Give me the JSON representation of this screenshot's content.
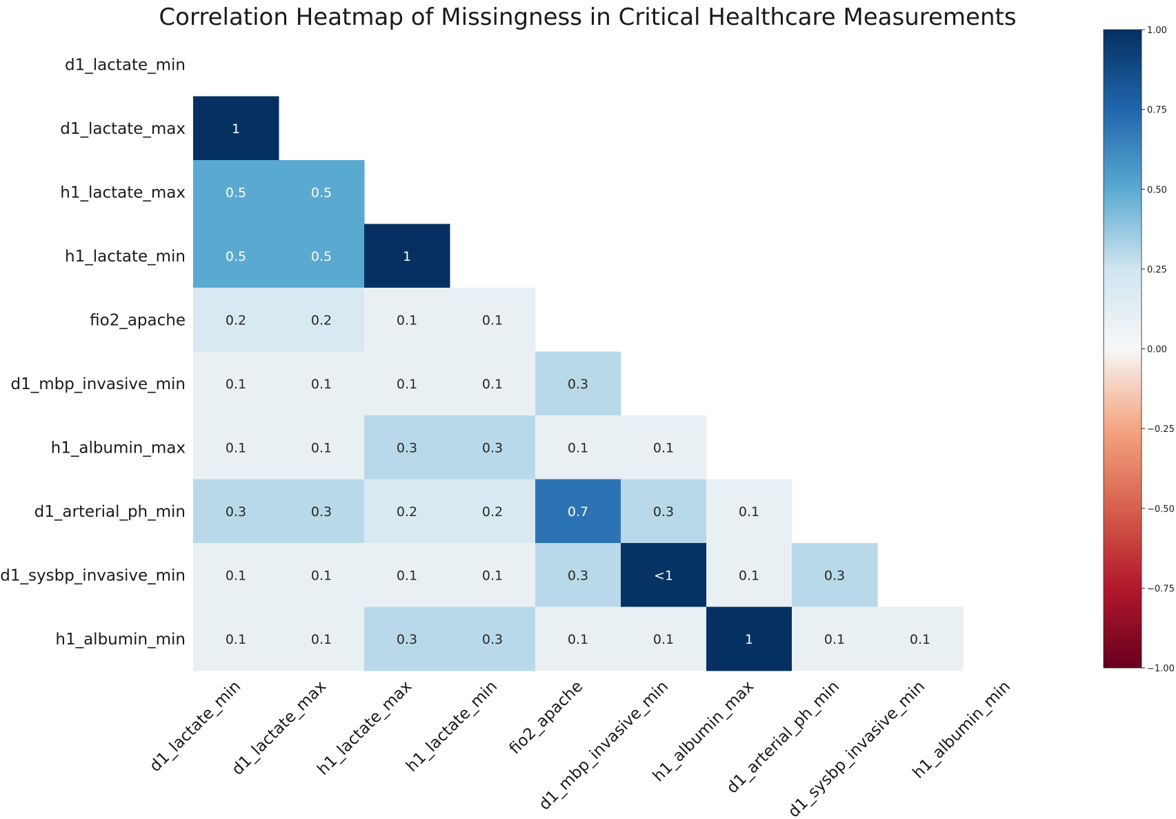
{
  "chart_data": {
    "type": "heatmap",
    "title": "Correlation Heatmap of Missingness in Critical Healthcare Measurements",
    "row_labels": [
      "d1_lactate_min",
      "d1_lactate_max",
      "h1_lactate_max",
      "h1_lactate_min",
      "fio2_apache",
      "d1_mbp_invasive_min",
      "h1_albumin_max",
      "d1_arterial_ph_min",
      "d1_sysbp_invasive_min",
      "h1_albumin_min"
    ],
    "col_labels": [
      "d1_lactate_min",
      "d1_lactate_max",
      "h1_lactate_max",
      "h1_lactate_min",
      "fio2_apache",
      "d1_mbp_invasive_min",
      "h1_albumin_max",
      "d1_arterial_ph_min",
      "d1_sysbp_invasive_min",
      "h1_albumin_min"
    ],
    "mask": "upper-triangle-including-diagonal",
    "cells": [
      {
        "row": 1,
        "col": 0,
        "value": 1.0,
        "label": "1"
      },
      {
        "row": 2,
        "col": 0,
        "value": 0.5,
        "label": "0.5"
      },
      {
        "row": 2,
        "col": 1,
        "value": 0.5,
        "label": "0.5"
      },
      {
        "row": 3,
        "col": 0,
        "value": 0.5,
        "label": "0.5"
      },
      {
        "row": 3,
        "col": 1,
        "value": 0.5,
        "label": "0.5"
      },
      {
        "row": 3,
        "col": 2,
        "value": 1.0,
        "label": "1"
      },
      {
        "row": 4,
        "col": 0,
        "value": 0.2,
        "label": "0.2"
      },
      {
        "row": 4,
        "col": 1,
        "value": 0.2,
        "label": "0.2"
      },
      {
        "row": 4,
        "col": 2,
        "value": 0.1,
        "label": "0.1"
      },
      {
        "row": 4,
        "col": 3,
        "value": 0.1,
        "label": "0.1"
      },
      {
        "row": 5,
        "col": 0,
        "value": 0.1,
        "label": "0.1"
      },
      {
        "row": 5,
        "col": 1,
        "value": 0.1,
        "label": "0.1"
      },
      {
        "row": 5,
        "col": 2,
        "value": 0.1,
        "label": "0.1"
      },
      {
        "row": 5,
        "col": 3,
        "value": 0.1,
        "label": "0.1"
      },
      {
        "row": 5,
        "col": 4,
        "value": 0.3,
        "label": "0.3"
      },
      {
        "row": 6,
        "col": 0,
        "value": 0.1,
        "label": "0.1"
      },
      {
        "row": 6,
        "col": 1,
        "value": 0.1,
        "label": "0.1"
      },
      {
        "row": 6,
        "col": 2,
        "value": 0.3,
        "label": "0.3"
      },
      {
        "row": 6,
        "col": 3,
        "value": 0.3,
        "label": "0.3"
      },
      {
        "row": 6,
        "col": 4,
        "value": 0.1,
        "label": "0.1"
      },
      {
        "row": 6,
        "col": 5,
        "value": 0.1,
        "label": "0.1"
      },
      {
        "row": 7,
        "col": 0,
        "value": 0.3,
        "label": "0.3"
      },
      {
        "row": 7,
        "col": 1,
        "value": 0.3,
        "label": "0.3"
      },
      {
        "row": 7,
        "col": 2,
        "value": 0.2,
        "label": "0.2"
      },
      {
        "row": 7,
        "col": 3,
        "value": 0.2,
        "label": "0.2"
      },
      {
        "row": 7,
        "col": 4,
        "value": 0.7,
        "label": "0.7"
      },
      {
        "row": 7,
        "col": 5,
        "value": 0.3,
        "label": "0.3"
      },
      {
        "row": 7,
        "col": 6,
        "value": 0.1,
        "label": "0.1"
      },
      {
        "row": 8,
        "col": 0,
        "value": 0.1,
        "label": "0.1"
      },
      {
        "row": 8,
        "col": 1,
        "value": 0.1,
        "label": "0.1"
      },
      {
        "row": 8,
        "col": 2,
        "value": 0.1,
        "label": "0.1"
      },
      {
        "row": 8,
        "col": 3,
        "value": 0.1,
        "label": "0.1"
      },
      {
        "row": 8,
        "col": 4,
        "value": 0.3,
        "label": "0.3"
      },
      {
        "row": 8,
        "col": 5,
        "value": 0.99,
        "label": "<1"
      },
      {
        "row": 8,
        "col": 6,
        "value": 0.1,
        "label": "0.1"
      },
      {
        "row": 8,
        "col": 7,
        "value": 0.3,
        "label": "0.3"
      },
      {
        "row": 9,
        "col": 0,
        "value": 0.1,
        "label": "0.1"
      },
      {
        "row": 9,
        "col": 1,
        "value": 0.1,
        "label": "0.1"
      },
      {
        "row": 9,
        "col": 2,
        "value": 0.3,
        "label": "0.3"
      },
      {
        "row": 9,
        "col": 3,
        "value": 0.3,
        "label": "0.3"
      },
      {
        "row": 9,
        "col": 4,
        "value": 0.1,
        "label": "0.1"
      },
      {
        "row": 9,
        "col": 5,
        "value": 0.1,
        "label": "0.1"
      },
      {
        "row": 9,
        "col": 6,
        "value": 1.0,
        "label": "1"
      },
      {
        "row": 9,
        "col": 7,
        "value": 0.1,
        "label": "0.1"
      },
      {
        "row": 9,
        "col": 8,
        "value": 0.1,
        "label": "0.1"
      }
    ],
    "colormap": "RdBu",
    "vmin": -1.0,
    "vmax": 1.0,
    "colorbar_ticks": [
      "1.00",
      "0.75",
      "0.50",
      "0.25",
      "0.00",
      "−0.25",
      "−0.50",
      "−0.75",
      "−1.00"
    ],
    "colorbar_tick_values": [
      1.0,
      0.75,
      0.5,
      0.25,
      0.0,
      -0.25,
      -0.5,
      -0.75,
      -1.0
    ],
    "colormap_stops": [
      {
        "v": -1.0,
        "color": "#67001f"
      },
      {
        "v": -0.75,
        "color": "#b2182b"
      },
      {
        "v": -0.5,
        "color": "#d6604d"
      },
      {
        "v": -0.25,
        "color": "#f4a582"
      },
      {
        "v": 0.0,
        "color": "#f7f7f7"
      },
      {
        "v": 0.25,
        "color": "#d1e5f0"
      },
      {
        "v": 0.5,
        "color": "#5aa9d1"
      },
      {
        "v": 0.75,
        "color": "#2166ac"
      },
      {
        "v": 1.0,
        "color": "#053061"
      }
    ]
  }
}
